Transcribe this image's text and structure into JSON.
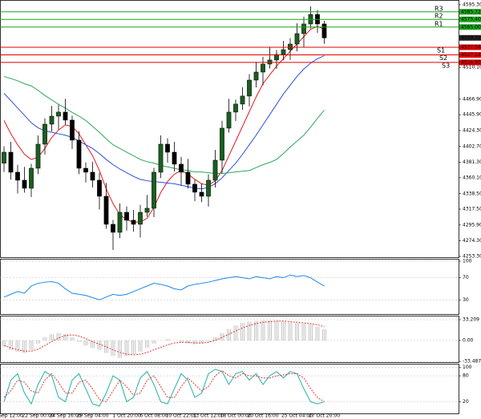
{
  "chart_data": [
    {
      "type": "candlestick",
      "categories": [
        null,
        "Sep 12:00",
        null,
        null,
        null,
        "22 Sep 00:00",
        null,
        null,
        null,
        "24 Sep 16:00",
        null,
        null,
        null,
        "29 Sep 04:00",
        null,
        null,
        null,
        null,
        "1 Oct 20:00",
        null,
        null,
        null,
        "6 Oct 08:00",
        null,
        null,
        null,
        "10 Oct 22:01",
        null,
        null,
        null,
        "13 Oct 12:00",
        null,
        null,
        null,
        "18 Oct 00:00",
        null,
        null,
        null,
        "20 Oct 16:00",
        null,
        null,
        null,
        null,
        "25 Oct 04:00",
        null,
        null,
        null,
        "27 Oct 20:00"
      ],
      "open": [
        4380.0,
        4394.9,
        4367.7,
        4356.8,
        4345.9,
        4373.1,
        4405.8,
        4433.0,
        4443.9,
        4449.4,
        4438.5,
        4411.3,
        4373.1,
        4367.7,
        4356.8,
        4335.0,
        4296.9,
        4286.0,
        4313.2,
        4302.4,
        4296.9,
        4313.2,
        4318.7,
        4367.7,
        4405.8,
        4394.9,
        4378.6,
        4367.7,
        4351.4,
        4340.5,
        4335.0,
        4356.8,
        4384.0,
        4427.6,
        4449.4,
        4460.3,
        4471.2,
        4492.9,
        4503.8,
        4514.7,
        4520.2,
        4527.8,
        4534.3,
        4541.9,
        4556.1,
        4569.2,
        4582.2,
        4569.2
      ],
      "high": [
        4402.9,
        4408.9,
        4377.7,
        4374.8,
        4379.1,
        4417.8,
        4441.0,
        4457.9,
        4459.4,
        4467.4,
        4444.5,
        4423.3,
        4381.1,
        4381.7,
        4366.8,
        4353.0,
        4302.9,
        4325.2,
        4321.2,
        4316.4,
        4323.2,
        4336.7,
        4373.7,
        4417.8,
        4413.8,
        4408.9,
        4388.6,
        4385.7,
        4357.4,
        4352.5,
        4364.8,
        4398.0,
        4437.6,
        4467.4,
        4466.3,
        4483.2,
        4500.9,
        4517.8,
        4524.7,
        4538.2,
        4533.8,
        4546.3,
        4549.9,
        4570.1,
        4579.2,
        4593.2,
        4588.2,
        4573.3
      ],
      "low": [
        4368.0,
        4357.7,
        4338.8,
        4339.9,
        4333.9,
        4365.1,
        4391.8,
        4423.0,
        4425.9,
        4432.5,
        4399.3,
        4365.1,
        4353.7,
        4346.8,
        4317.0,
        4290.9,
        4262.0,
        4278.0,
        4288.4,
        4286.9,
        4278.9,
        4307.2,
        4306.7,
        4359.7,
        4380.9,
        4368.6,
        4349.7,
        4345.4,
        4328.5,
        4327.0,
        4321.0,
        4346.8,
        4366.0,
        4421.6,
        4437.4,
        4452.3,
        4457.2,
        4482.9,
        4485.8,
        4508.7,
        4508.2,
        4519.8,
        4520.3,
        4531.9,
        4538.1,
        4563.2,
        4557.2,
        4542.3
      ],
      "close": [
        4394.9,
        4367.7,
        4356.8,
        4345.9,
        4373.1,
        4405.8,
        4433.0,
        4443.9,
        4449.4,
        4438.5,
        4411.3,
        4373.1,
        4367.7,
        4356.8,
        4335.0,
        4296.9,
        4286.0,
        4313.2,
        4302.4,
        4296.9,
        4313.2,
        4318.7,
        4367.7,
        4405.8,
        4394.9,
        4378.6,
        4367.7,
        4351.4,
        4340.5,
        4335.0,
        4356.8,
        4384.0,
        4427.6,
        4449.4,
        4460.3,
        4471.2,
        4492.9,
        4503.8,
        4514.7,
        4520.2,
        4527.8,
        4534.3,
        4541.9,
        4556.1,
        4569.2,
        4582.2,
        4569.2,
        4550.32
      ],
      "up_color": "#1b5e20",
      "down_color": "#000000",
      "ylim": [
        4252.2,
        4601.8
      ],
      "yticks": [
        {
          "value": 4595.3,
          "label": "4595.30"
        },
        {
          "value": 4510.1,
          "label": "4510.10"
        },
        {
          "value": 4466.9,
          "label": "4466.90"
        },
        {
          "value": 4445.9,
          "label": "4445.90"
        },
        {
          "value": 4424.3,
          "label": "4424.30"
        },
        {
          "value": 4402.7,
          "label": "4402.70"
        },
        {
          "value": 4381.3,
          "label": "4381.30"
        },
        {
          "value": 4360.1,
          "label": "4360.10"
        },
        {
          "value": 4338.5,
          "label": "4338.50"
        },
        {
          "value": 4317.5,
          "label": "4317.50"
        },
        {
          "value": 4295.9,
          "label": "4295.90"
        },
        {
          "value": 4274.3,
          "label": "4274.30"
        },
        {
          "value": 4253.3,
          "label": "4253.30"
        }
      ],
      "moving_averages": [
        {
          "color": "#e41a1c",
          "values": [
            4438,
            4420,
            4405,
            4392,
            4385,
            4388,
            4400,
            4415,
            4425,
            4432,
            4430,
            4420,
            4405,
            4390,
            4370,
            4345,
            4325,
            4310,
            4303,
            4300,
            4300,
            4305,
            4320,
            4340,
            4355,
            4365,
            4370,
            4365,
            4358,
            4352,
            4350,
            4356,
            4370,
            4390,
            4410,
            4430,
            4450,
            4470,
            4488,
            4500,
            4512,
            4522,
            4532,
            4542,
            4552,
            4562,
            4566,
            4562
          ]
        },
        {
          "color": "#2c4fd6",
          "values": [
            4475,
            4465,
            4455,
            4445,
            4435,
            4428,
            4424,
            4422,
            4420,
            4418,
            4415,
            4410,
            4405,
            4400,
            4393,
            4385,
            4378,
            4372,
            4367,
            4362,
            4358,
            4356,
            4355,
            4354,
            4353,
            4352,
            4350,
            4348,
            4346,
            4345,
            4347,
            4352,
            4360,
            4370,
            4380,
            4392,
            4405,
            4418,
            4432,
            4446,
            4460,
            4474,
            4486,
            4498,
            4508,
            4516,
            4522,
            4526
          ]
        },
        {
          "color": "#2ea65a",
          "values": [
            4498,
            4495,
            4492,
            4488,
            4485,
            4479,
            4472,
            4466,
            4460,
            4455,
            4449,
            4444,
            4438,
            4430,
            4422,
            4413,
            4405,
            4400,
            4395,
            4390,
            4385,
            4382,
            4380,
            4377,
            4375,
            4373,
            4371,
            4370,
            4368,
            4368,
            4367,
            4366,
            4366,
            4367,
            4368,
            4369,
            4370,
            4374,
            4378,
            4381,
            4385,
            4393,
            4402,
            4410,
            4418,
            4429,
            4441,
            4452
          ]
        }
      ],
      "levels": [
        {
          "name": "R3",
          "value": 4585.72,
          "color": "#19a519"
        },
        {
          "name": "R2",
          "value": 4575.4,
          "label": "4575.40",
          "color": "#19a519"
        },
        {
          "name": "R1",
          "value": 4565.0,
          "label": "4565.00",
          "color": "#19a519"
        },
        {
          "name": "S1",
          "value": 4537.56,
          "color": "#e00000"
        },
        {
          "name": "S2",
          "value": 4527.14,
          "color": "#e00000"
        },
        {
          "name": "S3",
          "value": 4516.93,
          "color": "#e00000"
        }
      ],
      "last_price": 4550.32
    },
    {
      "type": "line",
      "series": [
        {
          "color": "#1e88e5",
          "values": [
            35,
            40,
            45,
            42,
            55,
            60,
            62,
            63,
            60,
            50,
            42,
            40,
            38,
            34,
            30,
            35,
            40,
            38,
            40,
            45,
            50,
            55,
            60,
            58,
            55,
            50,
            48,
            55,
            58,
            60,
            62,
            65,
            68,
            70,
            72,
            70,
            68,
            72,
            70,
            68,
            72,
            70,
            75,
            72,
            74,
            70,
            62,
            55
          ]
        }
      ],
      "ylim": [
        4.3,
        104.3
      ],
      "yticks": [
        100,
        70,
        30
      ]
    },
    {
      "type": "macd",
      "histogram": {
        "color": "#9e9e9e",
        "values": [
          -10,
          -15,
          -18,
          -20,
          -15,
          -5,
          5,
          10,
          12,
          10,
          5,
          -2,
          -8,
          -12,
          -15,
          -20,
          -25,
          -28,
          -25,
          -22,
          -18,
          -12,
          -5,
          0,
          2,
          0,
          -3,
          -5,
          -6,
          -5,
          -2,
          5,
          12,
          18,
          24,
          28,
          30,
          31,
          32,
          32,
          31,
          30,
          29,
          28,
          27,
          26,
          22,
          18
        ]
      },
      "signal": {
        "color": "#e53935",
        "values": [
          -8,
          -12,
          -15,
          -17,
          -17,
          -14,
          -8,
          -2,
          4,
          8,
          9,
          7,
          3,
          -2,
          -6,
          -10,
          -15,
          -19,
          -22,
          -23,
          -22,
          -19,
          -15,
          -11,
          -7,
          -4,
          -3,
          -3,
          -4,
          -4,
          -3,
          0,
          5,
          10,
          15,
          20,
          24,
          27,
          29,
          30,
          31,
          31,
          30,
          29,
          28,
          27,
          25,
          22
        ]
      },
      "ylim": [
        -34.6,
        39.6
      ],
      "yticks": [
        33.209,
        {
          "value": 0,
          "label": "0.00"
        },
        -33.487
      ]
    },
    {
      "type": "line",
      "series": [
        {
          "color": "#20b2aa",
          "values": [
            20,
            70,
            85,
            40,
            15,
            60,
            90,
            80,
            30,
            20,
            70,
            85,
            50,
            15,
            10,
            40,
            80,
            70,
            20,
            30,
            75,
            90,
            60,
            20,
            15,
            50,
            85,
            70,
            30,
            40,
            85,
            95,
            90,
            60,
            85,
            90,
            70,
            85,
            60,
            80,
            90,
            75,
            90,
            85,
            50,
            20,
            15,
            20
          ]
        },
        {
          "color": "#e53935",
          "dashed": true,
          "values": [
            30,
            45,
            70,
            65,
            45,
            40,
            70,
            85,
            65,
            40,
            40,
            65,
            70,
            50,
            25,
            20,
            45,
            70,
            55,
            35,
            40,
            70,
            80,
            55,
            30,
            30,
            55,
            75,
            60,
            45,
            55,
            80,
            92,
            80,
            75,
            85,
            80,
            80,
            75,
            75,
            80,
            82,
            85,
            85,
            75,
            50,
            30,
            20
          ]
        }
      ],
      "ylim": [
        -7,
        108
      ],
      "yticks": [
        100,
        80,
        20
      ]
    }
  ]
}
